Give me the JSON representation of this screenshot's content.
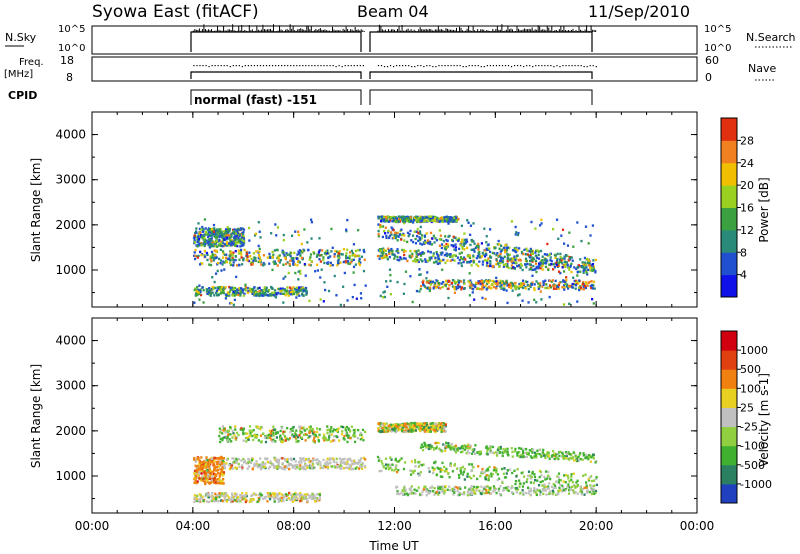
{
  "header": {
    "station": "Syowa East (fitACF)",
    "beam": "Beam 04",
    "date": "11/Sep/2010"
  },
  "noise_panel": {
    "left_label": "N.Sky",
    "left_ticks": [
      "10^5",
      "10^0"
    ],
    "right_ticks": [
      "10^5",
      "10^0"
    ],
    "right_label": "N.Search"
  },
  "freq_panel": {
    "left_label_line1": "Freq.",
    "left_label_line2": "[MHz]",
    "left_ticks": [
      "18",
      "8"
    ],
    "right_ticks": [
      "60",
      "0"
    ],
    "right_label": "Nave"
  },
  "cpid_panel": {
    "label": "CPID",
    "mode": "normal (fast) -151"
  },
  "chart_data": [
    {
      "type": "heatmap",
      "name": "power",
      "ylabel": "Slant Range [km]",
      "ylim": [
        180,
        4500
      ],
      "yticks": [
        "1000",
        "2000",
        "3000",
        "4000"
      ],
      "xlim": [
        0,
        24
      ],
      "colorbar": {
        "label": "Power [dB]",
        "ticks": [
          "4",
          "8",
          "12",
          "16",
          "20",
          "24",
          "28"
        ],
        "colors": [
          "#1010e8",
          "#2050d0",
          "#2a8a7a",
          "#3aa040",
          "#9ad020",
          "#f0c000",
          "#f08020",
          "#e03010"
        ]
      }
    },
    {
      "type": "heatmap",
      "name": "velocity",
      "ylabel": "Slant Range [km]",
      "ylim": [
        180,
        4500
      ],
      "yticks": [
        "1000",
        "2000",
        "3000",
        "4000"
      ],
      "xlim": [
        0,
        24
      ],
      "colorbar": {
        "label": "Velocity [m s-1]",
        "ticks": [
          "1000",
          "500",
          "100",
          "25",
          "-25",
          "-100",
          "-500",
          "-1000"
        ],
        "colors": [
          "#2040c0",
          "#2a8060",
          "#40b030",
          "#90d040",
          "#c0c0c0",
          "#e8d020",
          "#f08010",
          "#e04010",
          "#d00010"
        ]
      }
    }
  ],
  "xaxis": {
    "label": "Time UT",
    "ticks": [
      "00:00",
      "04:00",
      "08:00",
      "12:00",
      "16:00",
      "20:00",
      "00:00"
    ]
  }
}
